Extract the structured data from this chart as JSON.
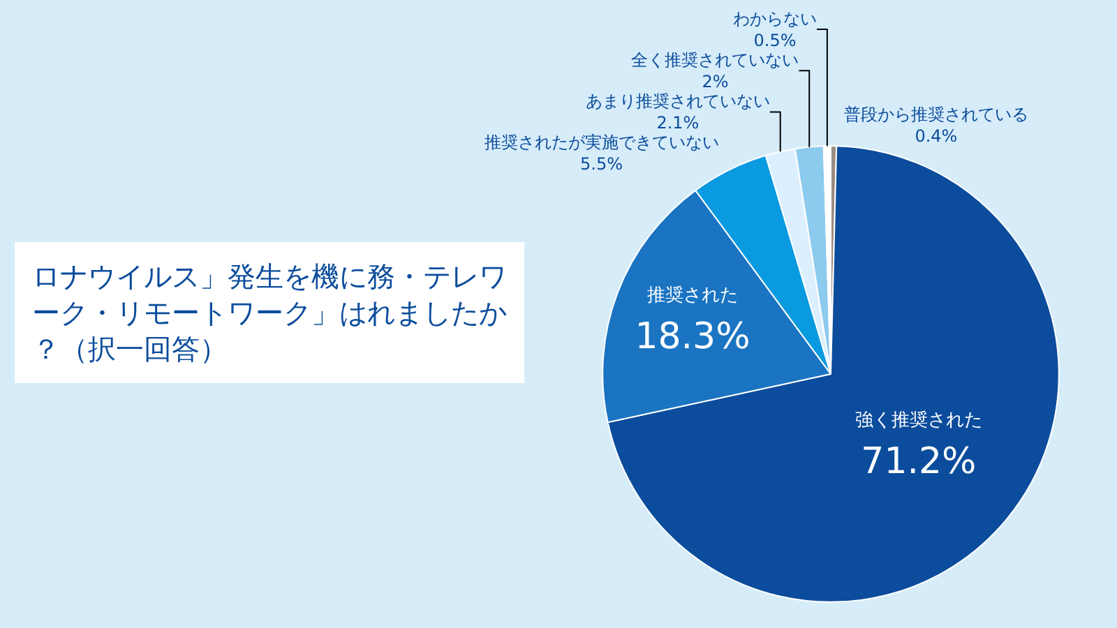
{
  "chart_data": {
    "type": "pie",
    "title": "ロナウイルス」発生を機に務・テレワーク・リモートワーク」はれましたか？（択一回答）",
    "categories": [
      "普段から推奨されている",
      "強く推奨された",
      "推奨された",
      "推奨されたが実施できていない",
      "あまり推奨されていない",
      "全く推奨されていない",
      "わからない"
    ],
    "values": [
      0.4,
      71.2,
      18.3,
      5.5,
      2.1,
      2,
      0.5
    ],
    "value_labels": [
      "0.4%",
      "71.2%",
      "18.3%",
      "5.5%",
      "2.1%",
      "2%",
      "0.5%"
    ],
    "colors": [
      "#9a8c84",
      "#0b4c9c",
      "#1a74c2",
      "#0a9ae0",
      "#dcefff",
      "#8ccaee",
      "#ffffff"
    ],
    "legend": false
  }
}
